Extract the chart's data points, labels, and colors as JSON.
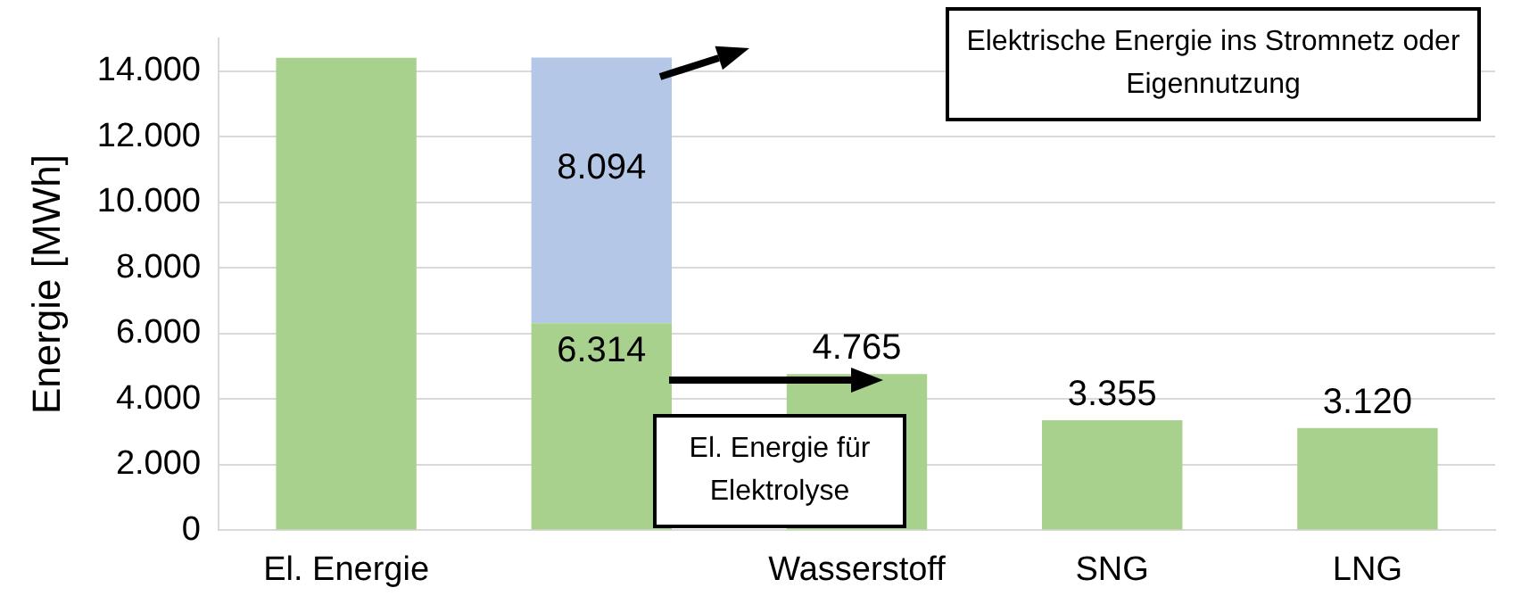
{
  "chart_data": {
    "type": "bar",
    "stacked": true,
    "ylabel": "Energie [MWh]",
    "categories": [
      "El. Energie",
      null,
      "Wasserstoff",
      "SNG",
      "LNG"
    ],
    "series": [
      {
        "color": "#a9d18e",
        "values": [
          14400,
          6314,
          4765,
          3355,
          3120
        ],
        "value_labels": [
          null,
          "6.314",
          "4.765",
          "3.355",
          "3.120"
        ]
      },
      {
        "color": "#b4c7e7",
        "values": [
          null,
          8094,
          null,
          null,
          null
        ],
        "value_labels": [
          null,
          "8.094",
          null,
          null,
          null
        ]
      }
    ],
    "ylim": [
      0,
      15000
    ],
    "yticks": [
      {
        "value": 0,
        "label": "0"
      },
      {
        "value": 2000,
        "label": "2.000"
      },
      {
        "value": 4000,
        "label": "4.000"
      },
      {
        "value": 6000,
        "label": "6.000"
      },
      {
        "value": 8000,
        "label": "8.000"
      },
      {
        "value": 10000,
        "label": "10.000"
      },
      {
        "value": 12000,
        "label": "12.000"
      },
      {
        "value": 14000,
        "label": "14.000"
      }
    ],
    "grid": "y",
    "legend": false,
    "annotations": [
      "Elektrische Energie ins Stromnetz oder Eigennutzung",
      "El. Energie für Elektrolyse"
    ]
  }
}
